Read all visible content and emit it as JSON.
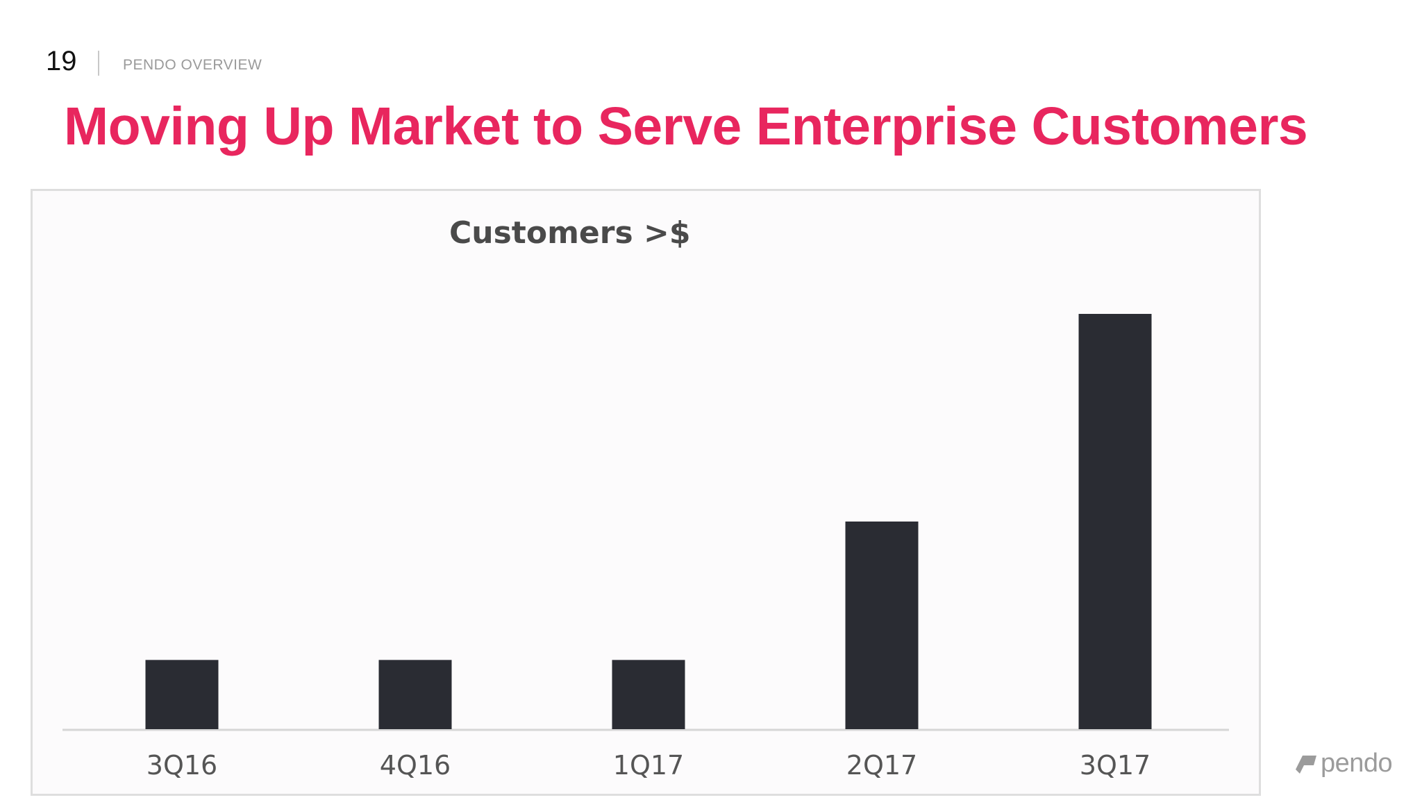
{
  "header": {
    "page_number": "19",
    "section_label": "PENDO OVERVIEW",
    "title": "Moving Up Market to Serve Enterprise Customers"
  },
  "logo": {
    "text": "pendo",
    "icon": "pendo-logo-icon",
    "color": "#9b9b9b"
  },
  "colors": {
    "title": "#e8265e",
    "bar": "#2a2c33",
    "axis": "#d6d6d6",
    "tick_text": "#555555"
  },
  "chart_data": {
    "type": "bar",
    "title": "Customers >$",
    "categories": [
      "3Q16",
      "4Q16",
      "1Q17",
      "2Q17",
      "3Q17"
    ],
    "values": [
      1,
      1,
      1,
      3,
      6
    ],
    "xlabel": "",
    "ylabel": "",
    "ylim": [
      0,
      6
    ],
    "grid": false,
    "legend": "none"
  }
}
